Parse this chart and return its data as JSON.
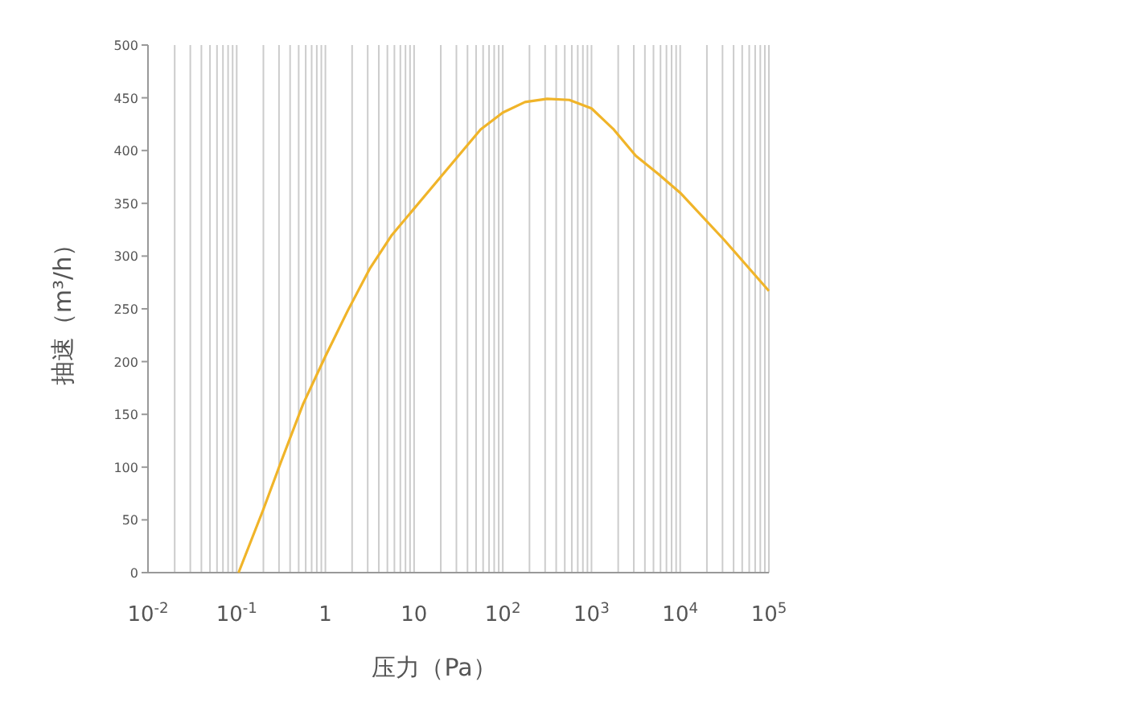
{
  "chart_data": {
    "type": "line",
    "xlabel": "压力（Pa）",
    "ylabel": "抽速（m³/h）",
    "log": "x",
    "grid": "x",
    "xlim": [
      0.01,
      100000
    ],
    "ylim": [
      0,
      500
    ],
    "xticks": [
      {
        "value": 0.01,
        "label": "10$^{-2}$"
      },
      {
        "value": 0.1,
        "label": "10$^{-1}$"
      },
      1,
      10,
      {
        "value": 100,
        "label": "10$^{2}$"
      },
      {
        "value": 1000,
        "label": "10$^{3}$"
      },
      {
        "value": 10000,
        "label": "10$^{4}$"
      },
      {
        "value": 100000,
        "label": "10$^{5}$"
      }
    ],
    "yticks": [
      0,
      50,
      100,
      150,
      200,
      250,
      300,
      350,
      400,
      450,
      500
    ],
    "series": [
      {
        "color": "#f0b429",
        "x": [
          0.105,
          0.2,
          0.316,
          0.562,
          1,
          1.78,
          3.16,
          5.62,
          10,
          17.8,
          31.6,
          56.2,
          100,
          178,
          316,
          562,
          1000,
          1780,
          3160,
          5620,
          10000,
          31600,
          100000
        ],
        "values": [
          0,
          60,
          105,
          160,
          205,
          248,
          288,
          320,
          345,
          370,
          395,
          420,
          436,
          446,
          449,
          448,
          440,
          420,
          395,
          378,
          360,
          315,
          267
        ]
      }
    ]
  }
}
